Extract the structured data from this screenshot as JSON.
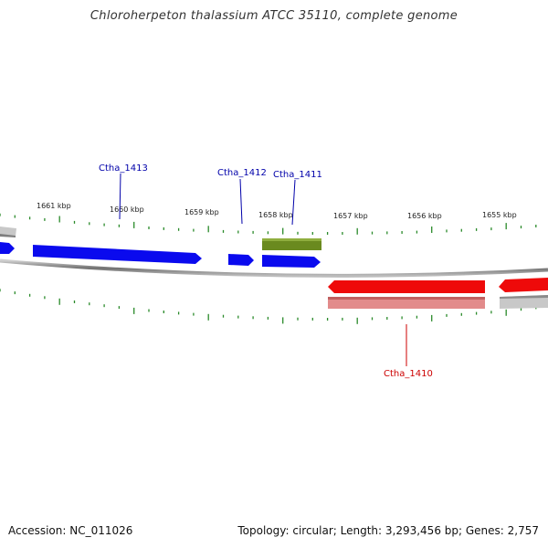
{
  "title": "Chloroherpeton thalassium ATCC 35110, complete genome",
  "footer": {
    "accession": "Accession: NC_011026",
    "summary": "Topology: circular; Length: 3,293,456 bp; Genes: 2,757"
  },
  "colors": {
    "forward_gene": "#0a0aee",
    "reverse_gene": "#ee0a0a",
    "reverse_gene_light": "#e28b8b",
    "rna_feature": "#6a8a1f",
    "other_feature": "#b8b8b8",
    "backbone": "#7a7a7a",
    "ticks": "#2a8a2a",
    "forward_label": "#0000aa",
    "reverse_label": "#cc0000"
  },
  "scale_labels": [
    "1661 kbp",
    "1660 kbp",
    "1659 kbp",
    "1658 kbp",
    "1657 kbp",
    "1656 kbp",
    "1655 kbp"
  ],
  "gene_labels": [
    {
      "id": "ctha-1413",
      "text": "Ctha_1413",
      "strand": "forward"
    },
    {
      "id": "ctha-1412",
      "text": "Ctha_1412",
      "strand": "forward"
    },
    {
      "id": "ctha-1411",
      "text": "Ctha_1411",
      "strand": "forward"
    },
    {
      "id": "ctha-1410",
      "text": "Ctha_1410",
      "strand": "reverse"
    }
  ]
}
